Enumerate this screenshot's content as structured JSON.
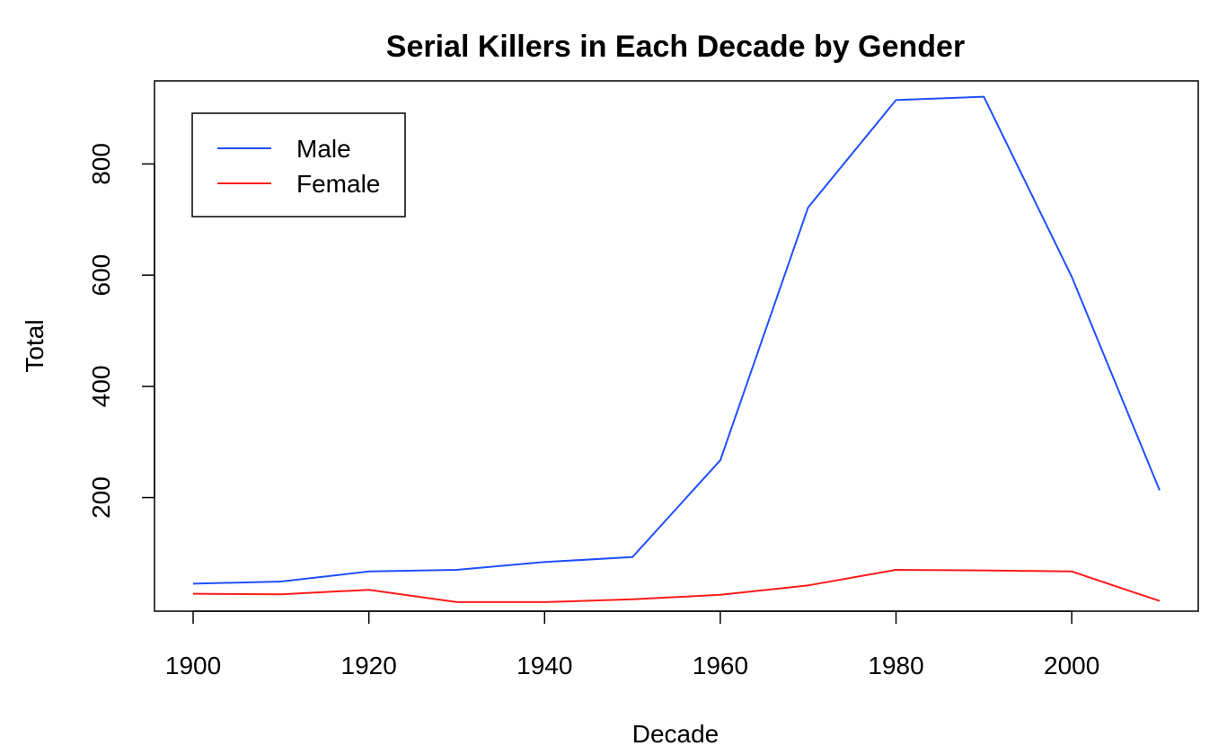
{
  "chart_data": {
    "type": "line",
    "title": "Serial Killers in Each Decade by Gender",
    "xlabel": "Decade",
    "ylabel": "Total",
    "x": [
      1900,
      1910,
      1920,
      1930,
      1940,
      1950,
      1960,
      1970,
      1980,
      1990,
      2000,
      2010
    ],
    "series": [
      {
        "name": "Male",
        "color": "#1f4fff",
        "values": [
          45,
          49,
          67,
          70,
          84,
          93,
          267,
          722,
          915,
          921,
          597,
          213
        ]
      },
      {
        "name": "Female",
        "color": "#ff1a1a",
        "values": [
          27,
          26,
          34,
          12,
          12,
          17,
          25,
          42,
          70,
          69,
          67,
          14
        ]
      }
    ],
    "xticks": [
      "1900",
      "1920",
      "1940",
      "1960",
      "1980",
      "2000"
    ],
    "yticks": [
      "200",
      "400",
      "600",
      "800"
    ],
    "xlim": [
      1895.6,
      2014.4
    ],
    "ylim": [
      -4.4,
      949.4
    ],
    "grid": false,
    "legend_position": "top-left"
  }
}
